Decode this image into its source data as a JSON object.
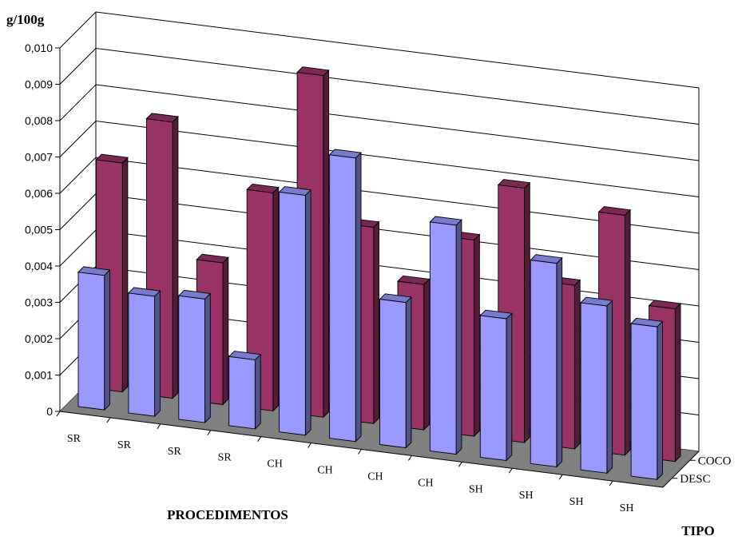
{
  "chart_data": {
    "type": "bar",
    "ylabel": "g/100g",
    "xlabel": "PROCEDIMENTOS",
    "zlabel": "TIPO",
    "ylim": [
      0,
      0.01
    ],
    "yticks": [
      "0",
      "0,001",
      "0,002",
      "0,003",
      "0,004",
      "0,005",
      "0,006",
      "0,007",
      "0,008",
      "0,009",
      "0,010"
    ],
    "categories": [
      "SR",
      "SR",
      "SR",
      "SR",
      "CH",
      "CH",
      "CH",
      "CH",
      "SH",
      "SH",
      "SH",
      "SH"
    ],
    "series": [
      {
        "name": "DESC",
        "values": [
          0.0037,
          0.0033,
          0.0034,
          0.0019,
          0.0066,
          0.0078,
          0.004,
          0.0063,
          0.0039,
          0.0056,
          0.0046,
          0.0042
        ]
      },
      {
        "name": "COCO",
        "values": [
          0.0063,
          0.0076,
          0.0039,
          0.006,
          0.0094,
          0.0054,
          0.004,
          0.0054,
          0.007,
          0.0045,
          0.0066,
          0.0042
        ]
      }
    ],
    "colors": {
      "DESC": "#9999ff",
      "COCO": "#993366"
    },
    "grid": true
  }
}
